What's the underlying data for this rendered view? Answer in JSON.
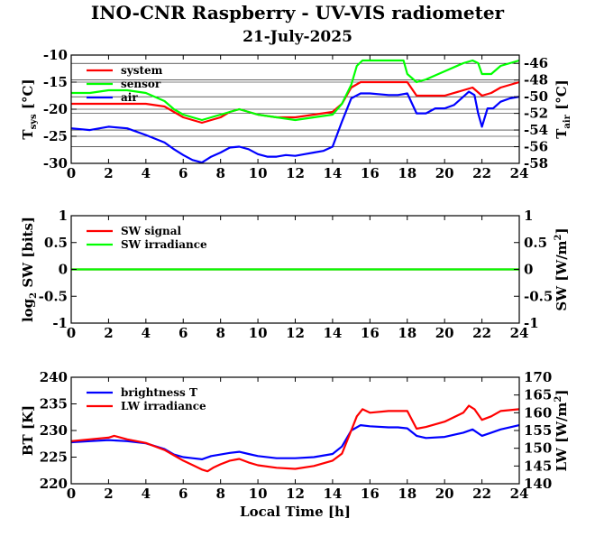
{
  "title": "INO-CNR Raspberry - UV-VIS radiometer",
  "subtitle": "21-July-2025",
  "chart_data": [
    {
      "type": "line",
      "xlim": [
        0,
        24
      ],
      "ylim": [
        -30,
        -10
      ],
      "y2lim": [
        -58,
        -45
      ],
      "xticks": [
        "0",
        "2",
        "4",
        "6",
        "8",
        "10",
        "12",
        "14",
        "16",
        "18",
        "20",
        "22",
        "24"
      ],
      "yticks": [
        "-10",
        "-15",
        "-20",
        "-25",
        "-30"
      ],
      "y2ticks": [
        "-46",
        "-48",
        "-50",
        "-52",
        "-54",
        "-56",
        "-58"
      ],
      "ylabel_main": "T",
      "ylabel_sub": "sys",
      "ylabel_unit": " [°C]",
      "y2label_main": "T",
      "y2label_sub": "air",
      "y2label_unit": " [°C]",
      "grid": true,
      "legend": "top-left",
      "series": [
        {
          "name": "system",
          "color": "#ff0000",
          "axis": "left",
          "x": [
            0,
            1,
            2,
            3,
            4,
            5,
            5.5,
            6,
            6.5,
            7,
            7.5,
            8,
            8.5,
            9,
            9.5,
            10,
            11,
            12,
            13,
            14,
            14.5,
            15,
            15.5,
            16,
            17,
            17.5,
            18,
            18.5,
            19,
            20,
            21,
            21.5,
            22,
            22.5,
            23,
            24
          ],
          "y": [
            -19,
            -19,
            -19,
            -19,
            -19,
            -19.5,
            -20.5,
            -21.5,
            -22,
            -22.5,
            -22,
            -21.5,
            -20.5,
            -20,
            -20.5,
            -21,
            -21.5,
            -21.5,
            -21,
            -20.5,
            -19,
            -16,
            -15,
            -15,
            -15,
            -15,
            -15,
            -17.5,
            -17.5,
            -17.5,
            -16.5,
            -16,
            -17.5,
            -17,
            -16,
            -15
          ]
        },
        {
          "name": "sensor",
          "color": "#00ff00",
          "axis": "left",
          "x": [
            0,
            1,
            2,
            3,
            4,
            5,
            5.5,
            6,
            6.5,
            7,
            7.5,
            8,
            8.5,
            9,
            9.5,
            10,
            11,
            12,
            13,
            14,
            14.5,
            15,
            15.3,
            15.6,
            16,
            17,
            17.5,
            17.8,
            18,
            18.5,
            19,
            20,
            21,
            21.5,
            21.8,
            22,
            22.5,
            23,
            23.5,
            24
          ],
          "y": [
            -17,
            -17,
            -16.5,
            -16.5,
            -17,
            -18.5,
            -20,
            -21,
            -21.5,
            -22,
            -21.5,
            -21,
            -20.5,
            -20,
            -20.5,
            -21,
            -21.5,
            -22,
            -21.5,
            -21,
            -19,
            -15.5,
            -12,
            -11,
            -11,
            -11,
            -11,
            -11,
            -13.5,
            -15,
            -14.5,
            -13,
            -11.5,
            -11,
            -11.5,
            -13.5,
            -13.5,
            -12,
            -11.5,
            -11
          ]
        },
        {
          "name": "air",
          "color": "#0000ff",
          "axis": "right",
          "x": [
            0,
            1,
            2,
            3,
            4,
            5,
            5.5,
            6,
            6.5,
            7,
            7.5,
            8,
            8.5,
            9,
            9.5,
            10,
            10.5,
            11,
            11.5,
            12,
            12.5,
            13,
            13.5,
            14,
            14.5,
            15,
            15.5,
            16,
            17,
            17.5,
            18,
            18.5,
            19,
            19.5,
            20,
            20.5,
            21,
            21.3,
            21.6,
            21.8,
            22,
            22.3,
            22.6,
            23,
            23.5,
            24
          ],
          "y": [
            -53.8,
            -54,
            -53.6,
            -53.8,
            -54.6,
            -55.5,
            -56.3,
            -57,
            -57.6,
            -57.9,
            -57.2,
            -56.7,
            -56.1,
            -56,
            -56.3,
            -56.9,
            -57.2,
            -57.2,
            -57,
            -57.1,
            -56.9,
            -56.7,
            -56.5,
            -56,
            -53,
            -50.2,
            -49.6,
            -49.6,
            -49.8,
            -49.8,
            -49.6,
            -52,
            -52,
            -51.4,
            -51.4,
            -51,
            -50,
            -49.4,
            -49.8,
            -52,
            -53.6,
            -51.4,
            -51.4,
            -50.6,
            -50.2,
            -50
          ]
        }
      ]
    },
    {
      "type": "line",
      "xlim": [
        0,
        24
      ],
      "ylim": [
        -1,
        1
      ],
      "y2lim": [
        -1,
        1
      ],
      "xticks": [
        "0",
        "2",
        "4",
        "6",
        "8",
        "10",
        "12",
        "14",
        "16",
        "18",
        "20",
        "22",
        "24"
      ],
      "yticks": [
        "1",
        "0.5",
        "0",
        "-0.5",
        "-1"
      ],
      "y2ticks": [
        "1",
        "0.5",
        "0",
        "-0.5",
        "-1"
      ],
      "ylabel_main": "log",
      "ylabel_sub": "2",
      "ylabel_unit": " SW [bits]",
      "y2label_main": "SW [W/m",
      "y2label_sup": "2",
      "y2label_unit": "]",
      "grid": false,
      "legend": "top-left",
      "series": [
        {
          "name": "SW signal",
          "color": "#ff0000",
          "axis": "left",
          "x": [
            0,
            24
          ],
          "y": [
            0,
            0
          ]
        },
        {
          "name": "SW irradiance",
          "color": "#00ff00",
          "axis": "right",
          "x": [
            0,
            24
          ],
          "y": [
            0,
            0
          ]
        }
      ]
    },
    {
      "type": "line",
      "xlim": [
        0,
        24
      ],
      "ylim": [
        220,
        240
      ],
      "y2lim": [
        140,
        170
      ],
      "xticks": [
        "0",
        "2",
        "4",
        "6",
        "8",
        "10",
        "12",
        "14",
        "16",
        "18",
        "20",
        "22",
        "24"
      ],
      "yticks": [
        "240",
        "235",
        "230",
        "225",
        "220"
      ],
      "y2ticks": [
        "170",
        "165",
        "160",
        "155",
        "150",
        "145",
        "140"
      ],
      "xlabel": "Local Time [h]",
      "ylabel_main": "BT [K]",
      "y2label_main": "LW [W/m",
      "y2label_sup": "2",
      "y2label_unit": "]",
      "grid": false,
      "legend": "top-left",
      "series": [
        {
          "name": "brightness T",
          "color": "#0000ff",
          "axis": "left",
          "x": [
            0,
            1,
            2,
            3,
            4,
            5,
            5.5,
            6,
            6.5,
            7,
            7.5,
            8,
            8.5,
            9,
            9.5,
            10,
            11,
            12,
            13,
            14,
            14.5,
            15,
            15.5,
            16,
            17,
            17.5,
            18,
            18.5,
            19,
            20,
            21,
            21.5,
            22,
            22.5,
            23,
            24
          ],
          "y": [
            227.8,
            228,
            228.2,
            228,
            227.6,
            226.5,
            225.5,
            225,
            224.8,
            224.6,
            225.2,
            225.5,
            225.8,
            226,
            225.6,
            225.2,
            224.8,
            224.8,
            225,
            225.6,
            227,
            230,
            231,
            230.8,
            230.6,
            230.6,
            230.4,
            229,
            228.6,
            228.8,
            229.6,
            230.2,
            229,
            229.6,
            230.2,
            231
          ]
        },
        {
          "name": "LW irradiance",
          "color": "#ff0000",
          "axis": "right",
          "x": [
            0,
            1,
            2,
            2.3,
            3,
            4,
            5,
            5.5,
            6,
            6.5,
            7,
            7.3,
            7.6,
            8,
            8.5,
            9,
            9.5,
            10,
            11,
            12,
            13,
            14,
            14.5,
            15,
            15.3,
            15.6,
            16,
            17,
            17.5,
            18,
            18.5,
            19,
            20,
            21,
            21.3,
            21.6,
            22,
            22.5,
            23,
            24
          ],
          "y": [
            152,
            152.5,
            153,
            153.5,
            152.5,
            151.5,
            149.5,
            148,
            146.5,
            145.3,
            144,
            143.5,
            144.5,
            145.5,
            146.5,
            147,
            146,
            145.2,
            144.5,
            144.2,
            145,
            146.5,
            148.5,
            155,
            159,
            161,
            160,
            160.5,
            160.5,
            160.5,
            155.5,
            156,
            157.5,
            160,
            162,
            161,
            158,
            159,
            160.5,
            161
          ]
        }
      ]
    }
  ]
}
